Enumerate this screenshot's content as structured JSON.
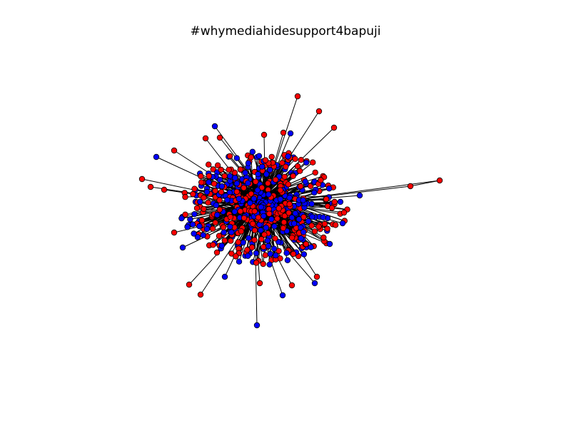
{
  "title": "#whymediahidesupport4bapuji",
  "graph": {
    "type": "network",
    "edge_color": "#000000",
    "node_outline": "#000000",
    "groups": [
      {
        "color": "#ff0000"
      },
      {
        "color": "#0000ff"
      }
    ],
    "node_count_estimate": 600
  }
}
